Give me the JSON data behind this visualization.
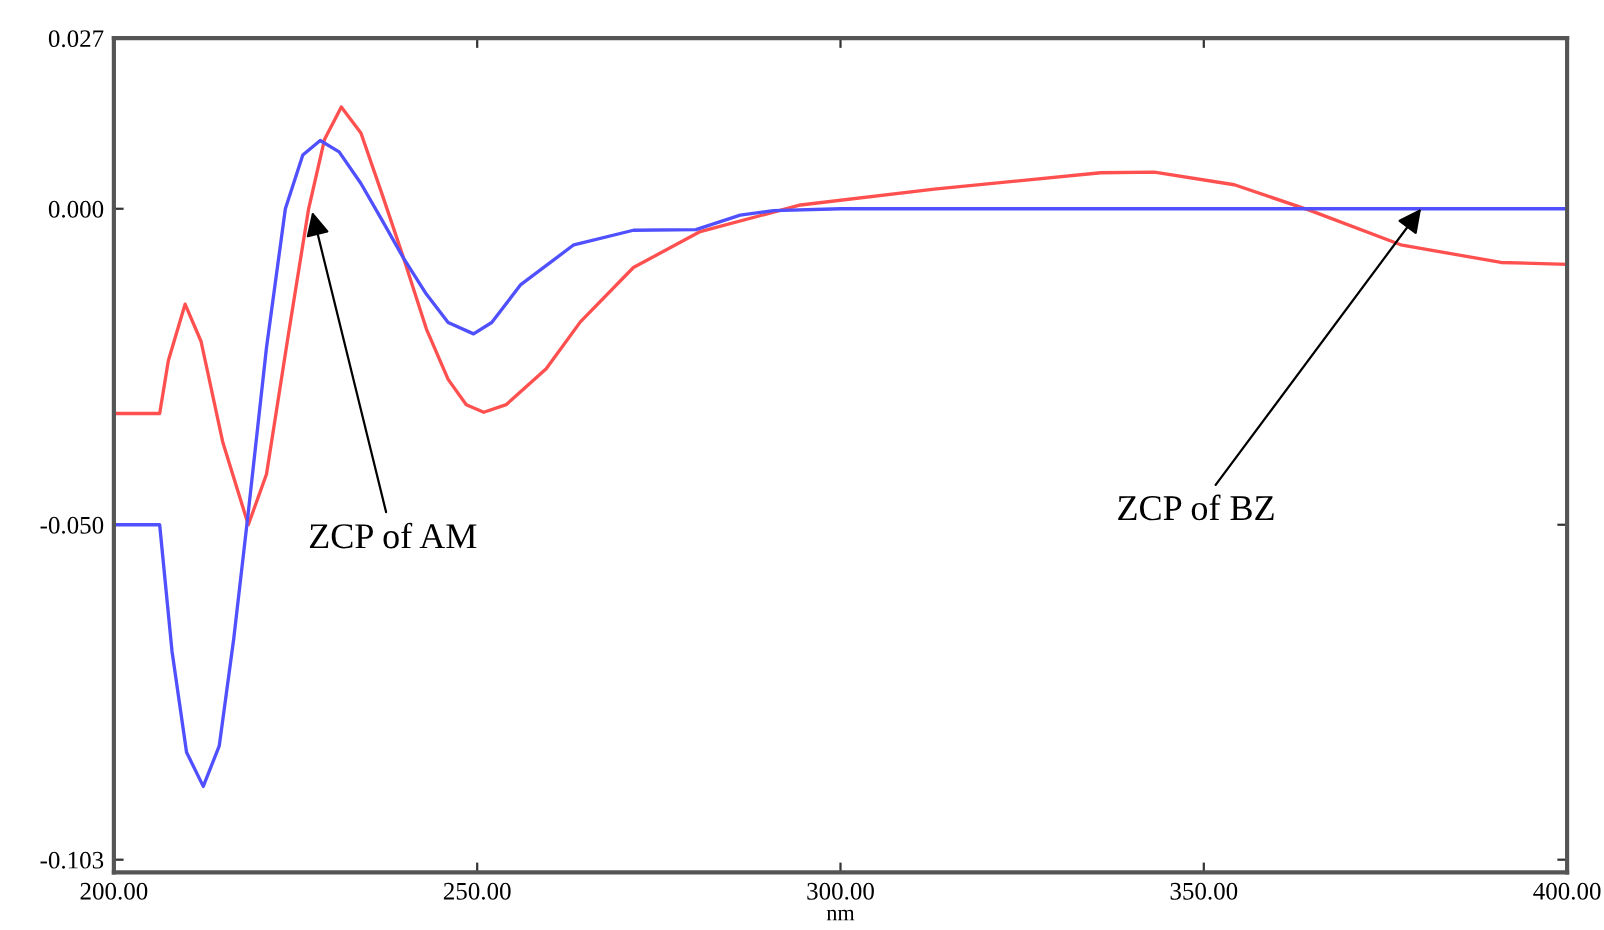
{
  "chart_data": {
    "type": "line",
    "xlabel": "nm",
    "xlim": [
      200,
      400
    ],
    "ylim": [
      -0.105,
      0.027
    ],
    "xticks": [
      {
        "value": 200,
        "label": "200.00"
      },
      {
        "value": 250,
        "label": "250.00"
      },
      {
        "value": 300,
        "label": "300.00"
      },
      {
        "value": 350,
        "label": "350.00"
      },
      {
        "value": 400,
        "label": "400.00"
      }
    ],
    "yticks": [
      {
        "value": -0.103,
        "label": "-0.103"
      },
      {
        "value": -0.05,
        "label": "-0.050"
      },
      {
        "value": 0,
        "label": "0.000"
      },
      {
        "value": 0.027,
        "label": "0.027"
      }
    ],
    "grid": false,
    "legend": false,
    "marker": "none",
    "line_style": "solid",
    "series": [
      {
        "color": "#ff5050",
        "x": [
          200,
          206.3,
          207.5,
          209.8,
          212,
          215,
          218.5,
          221,
          224,
          226.8,
          229,
          231.3,
          234,
          237,
          239.9,
          243,
          246,
          248.5,
          250.9,
          254,
          259.5,
          264.2,
          271.5,
          280.7,
          294.5,
          312.9,
          335.8,
          343.2,
          354.2,
          364.7,
          377.1,
          390.9,
          400
        ],
        "values": [
          -0.0324,
          -0.0324,
          -0.024,
          -0.0151,
          -0.021,
          -0.037,
          -0.05,
          -0.042,
          -0.02,
          0,
          0.011,
          0.0161,
          0.012,
          0.002,
          -0.0079,
          -0.019,
          -0.027,
          -0.031,
          -0.0322,
          -0.031,
          -0.0253,
          -0.0179,
          -0.0093,
          -0.0036,
          0.0006,
          0.0031,
          0.0057,
          0.0058,
          0.0038,
          -0.0003,
          -0.0057,
          -0.0085,
          -0.0088
        ]
      },
      {
        "color": "#5050ff",
        "x": [
          200,
          206.3,
          208,
          210,
          212.3,
          214.5,
          216.5,
          218.5,
          221,
          223.6,
          226,
          228.4,
          231,
          234,
          237,
          239.9,
          243,
          246,
          249.5,
          252,
          256,
          263.3,
          271.5,
          280.1,
          286.2,
          290.8,
          300,
          350,
          400
        ],
        "values": [
          -0.05,
          -0.05,
          -0.07,
          -0.086,
          -0.0914,
          -0.085,
          -0.068,
          -0.048,
          -0.022,
          0,
          0.0085,
          0.0108,
          0.009,
          0.004,
          -0.002,
          -0.0079,
          -0.0135,
          -0.018,
          -0.0198,
          -0.018,
          -0.012,
          -0.0057,
          -0.0034,
          -0.0033,
          -0.001,
          -0.0003,
          0,
          0,
          0
        ]
      }
    ],
    "annotations": [
      {
        "text": "ZCP of AM",
        "x": 227.3,
        "y": -0.0005
      },
      {
        "text": "ZCP of BZ",
        "x": 379.9,
        "y": 0
      }
    ]
  }
}
